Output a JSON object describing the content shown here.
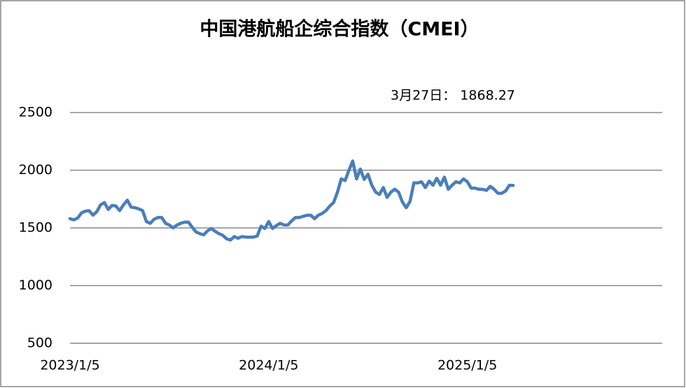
{
  "chart_data": {
    "type": "line",
    "title": "中国港航船企综合指数（CMEI）",
    "annotation": "3月27日： 1868.27",
    "categories": [
      "2023/1/5",
      null,
      null,
      null,
      null,
      null,
      null,
      null,
      null,
      null,
      null,
      null,
      null,
      null,
      null,
      null,
      null,
      null,
      null,
      null,
      null,
      null,
      null,
      null,
      null,
      null,
      null,
      null,
      null,
      null,
      null,
      null,
      null,
      null,
      null,
      null,
      null,
      null,
      null,
      null,
      null,
      null,
      null,
      null,
      null,
      null,
      null,
      null,
      null,
      null,
      null,
      null,
      "2024/1/5",
      null,
      null,
      null,
      null,
      null,
      null,
      null,
      null,
      null,
      null,
      null,
      null,
      null,
      null,
      null,
      null,
      null,
      null,
      null,
      null,
      null,
      null,
      null,
      null,
      null,
      null,
      null,
      null,
      null,
      null,
      null,
      null,
      null,
      null,
      null,
      null,
      null,
      null,
      null,
      null,
      null,
      null,
      null,
      null,
      null,
      null,
      null,
      null,
      null,
      null,
      null,
      "2025/1/5",
      null,
      null,
      null,
      null,
      null,
      null,
      null,
      null,
      null,
      null,
      null,
      null,
      null,
      null,
      null,
      null,
      null,
      null,
      null,
      null,
      null,
      null,
      null,
      null,
      null,
      null,
      null,
      null,
      null,
      null,
      null,
      null,
      null,
      null,
      null,
      null,
      null,
      null,
      null,
      null,
      null,
      null,
      null,
      null,
      null,
      null,
      null,
      null,
      null,
      null,
      null
    ],
    "series": [
      {
        "name": "CMEI",
        "color": "#4a7ebb",
        "values": [
          1580,
          1570,
          1585,
          1630,
          1645,
          1650,
          1610,
          1640,
          1700,
          1720,
          1660,
          1695,
          1690,
          1650,
          1700,
          1740,
          1680,
          1675,
          1665,
          1650,
          1555,
          1540,
          1575,
          1590,
          1590,
          1540,
          1525,
          1500,
          1525,
          1540,
          1550,
          1550,
          1505,
          1465,
          1450,
          1440,
          1475,
          1495,
          1470,
          1450,
          1435,
          1405,
          1395,
          1425,
          1410,
          1425,
          1420,
          1420,
          1420,
          1430,
          1515,
          1495,
          1555,
          1495,
          1520,
          1540,
          1525,
          1525,
          1560,
          1590,
          1590,
          1600,
          1610,
          1610,
          1580,
          1610,
          1625,
          1650,
          1690,
          1720,
          1810,
          1925,
          1910,
          2000,
          2080,
          1925,
          2010,
          1920,
          1965,
          1870,
          1810,
          1790,
          1850,
          1765,
          1810,
          1835,
          1810,
          1725,
          1675,
          1730,
          1890,
          1890,
          1900,
          1850,
          1905,
          1870,
          1930,
          1870,
          1940,
          1835,
          1870,
          1900,
          1890,
          1925,
          1900,
          1845,
          1845,
          1835,
          1835,
          1825,
          1860,
          1835,
          1800,
          1800,
          1820,
          1870,
          1868.27,
          null,
          null,
          null,
          null,
          null,
          null,
          null,
          null,
          null,
          null,
          null,
          null,
          null,
          null,
          null,
          null,
          null,
          null,
          null,
          null,
          null,
          null,
          null,
          null,
          null,
          null,
          null,
          null,
          null,
          null,
          null,
          null,
          null,
          null,
          null,
          null,
          null,
          null,
          null
        ]
      }
    ],
    "ylim": [
      500,
      2500
    ],
    "yticks": [
      500,
      1000,
      1500,
      2000,
      2500
    ],
    "grid": true
  }
}
